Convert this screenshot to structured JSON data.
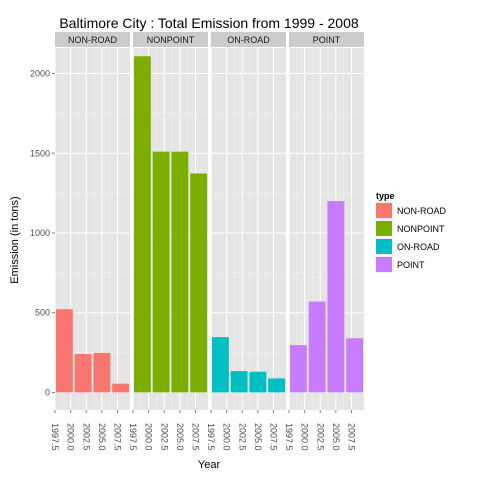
{
  "chart_data": {
    "type": "bar",
    "title": "Baltimore City : Total Emission from 1999 - 2008",
    "xlabel": "Year",
    "ylabel": "Emission (in tons)",
    "ylim": [
      -110,
      2160
    ],
    "y_ticks": [
      0,
      500,
      1000,
      1500,
      2000
    ],
    "y_tick_labels": [
      "0",
      "500",
      "1000",
      "1500",
      "2000"
    ],
    "x_range": [
      1997.5,
      2009.5
    ],
    "x_ticks": [
      1997.5,
      2000.0,
      2002.5,
      2005.0,
      2007.5
    ],
    "x_tick_labels": [
      "1997.5",
      "2000.0",
      "2002.5",
      "2005.0",
      "2007.5"
    ],
    "years": [
      1999,
      2002,
      2005,
      2008
    ],
    "grid": true,
    "legend": {
      "title": "type",
      "position": "right",
      "entries": [
        {
          "label": "NON-ROAD",
          "color": "#F8766D"
        },
        {
          "label": "NONPOINT",
          "color": "#7CAE00"
        },
        {
          "label": "ON-ROAD",
          "color": "#00BFC4"
        },
        {
          "label": "POINT",
          "color": "#C77CFF"
        }
      ]
    },
    "facets": [
      {
        "label": "NON-ROAD",
        "color": "#F8766D",
        "values": [
          522,
          241,
          248,
          55
        ]
      },
      {
        "label": "NONPOINT",
        "color": "#7CAE00",
        "values": [
          2108,
          1510,
          1510,
          1373
        ]
      },
      {
        "label": "ON-ROAD",
        "color": "#00BFC4",
        "values": [
          347,
          134,
          130,
          88
        ]
      },
      {
        "label": "POINT",
        "color": "#C77CFF",
        "values": [
          297,
          570,
          1200,
          340
        ]
      }
    ]
  }
}
